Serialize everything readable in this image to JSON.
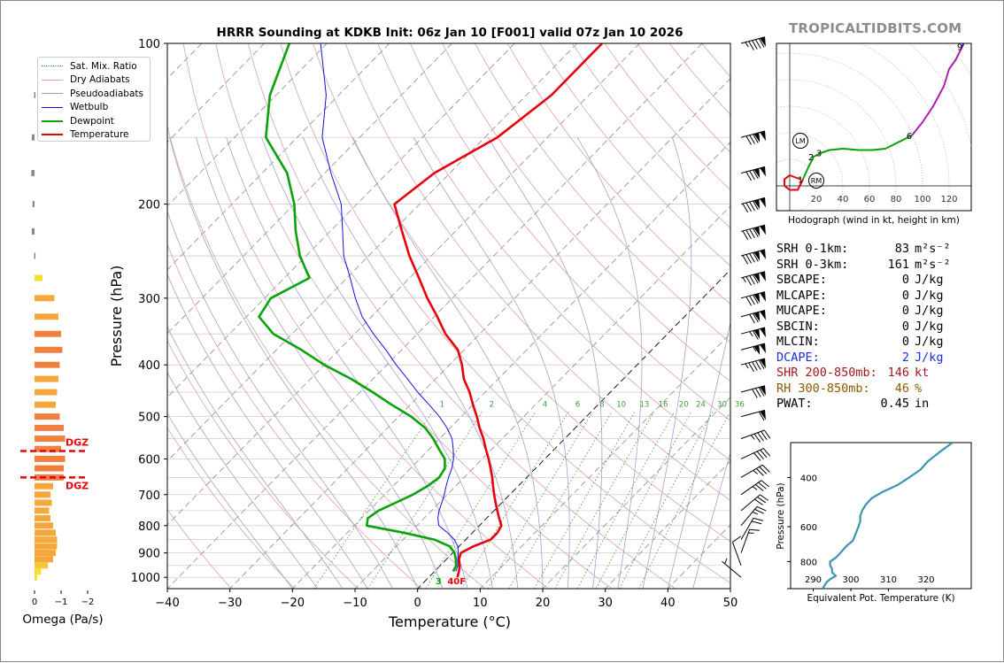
{
  "watermark": "TROPICALTIDBITS.COM",
  "title": "HRRR Sounding at KDKB Init: 06z Jan 10 [F001] valid 07z Jan 10 2026",
  "colors": {
    "temperature": "#e8000b",
    "dewpoint": "#08a308",
    "wetbulb": "#1010e0",
    "hodo_0_1": "#e8000b",
    "hodo_1_3": "#08a308",
    "hodo_3_6": "#08a308",
    "hodo_6_9": "#b020b0",
    "hodo_9": "#1010e0",
    "theta_e": "#3a95b0",
    "omega_pos": "#f28c3c",
    "omega_neg": "#888888",
    "dgz": "#e8000b"
  },
  "legend": [
    {
      "label": "Sat. Mix. Ratio",
      "style": "mix"
    },
    {
      "label": "Dry Adiabats",
      "style": "dry"
    },
    {
      "label": "Pseudoadiabats",
      "style": "moist"
    },
    {
      "label": "Wetbulb",
      "style": "wetbulb"
    },
    {
      "label": "Dewpoint",
      "style": "dewpoint"
    },
    {
      "label": "Temperature",
      "style": "temperature"
    }
  ],
  "chart_data": [
    {
      "type": "line",
      "name": "skewt",
      "xlabel": "Temperature (°C)",
      "ylabel": "Pressure (hPa)",
      "xlim": [
        -40,
        50
      ],
      "ylim": [
        1050,
        100
      ],
      "log_y": true,
      "skew": true,
      "x_ticks": [
        -40,
        -30,
        -20,
        -10,
        0,
        10,
        20,
        30,
        40,
        50
      ],
      "y_ticks": [
        100,
        200,
        300,
        400,
        500,
        600,
        700,
        800,
        900,
        1000
      ],
      "mixing_ratio_labels": [
        "1",
        "2",
        "4",
        "6",
        "8",
        "10",
        "13",
        "16",
        "20",
        "24",
        "30",
        "36"
      ],
      "surface_label": "40F",
      "surface_dewpoint_label": "3",
      "series": [
        {
          "name": "Temperature",
          "p": [
            1000,
            975,
            950,
            925,
            900,
            875,
            850,
            825,
            800,
            775,
            750,
            725,
            700,
            675,
            650,
            625,
            600,
            575,
            550,
            525,
            500,
            475,
            450,
            425,
            400,
            375,
            350,
            325,
            300,
            275,
            250,
            225,
            200,
            175,
            150,
            125,
            100
          ],
          "t": [
            4.6,
            3.9,
            3.1,
            2.0,
            1.3,
            2.3,
            4.0,
            4.0,
            3.5,
            2.0,
            0.5,
            -1.0,
            -2.5,
            -4.0,
            -5.5,
            -7.2,
            -9.0,
            -11.0,
            -13.0,
            -15.3,
            -17.5,
            -20.0,
            -22.5,
            -25.5,
            -28.0,
            -31.0,
            -35.5,
            -39.5,
            -44.0,
            -48.5,
            -53.5,
            -58.5,
            -64.0,
            -62.5,
            -58.0,
            -56.0,
            -56.0
          ]
        },
        {
          "name": "Dewpoint",
          "p": [
            975,
            950,
            925,
            900,
            875,
            850,
            825,
            800,
            775,
            750,
            725,
            700,
            675,
            650,
            625,
            600,
            575,
            550,
            525,
            500,
            475,
            450,
            425,
            400,
            375,
            350,
            325,
            300,
            275,
            250,
            225,
            200,
            175,
            150,
            125,
            100
          ],
          "t": [
            3.0,
            2.5,
            1.5,
            0.3,
            -1.5,
            -5.0,
            -11.0,
            -18.0,
            -19.0,
            -18.5,
            -17.0,
            -15.5,
            -14.5,
            -14.0,
            -14.5,
            -16.0,
            -18.5,
            -21.0,
            -24.0,
            -28.0,
            -33.0,
            -38.0,
            -43.5,
            -50.0,
            -56.0,
            -63.0,
            -68.0,
            -69.0,
            -66.0,
            -71.0,
            -75.5,
            -80.0,
            -86.0,
            -95.0,
            -101.0,
            -106.0
          ]
        },
        {
          "name": "Wetbulb",
          "p": [
            975,
            950,
            925,
            900,
            875,
            850,
            825,
            800,
            775,
            750,
            725,
            700,
            675,
            650,
            625,
            600,
            575,
            550,
            525,
            500,
            475,
            450,
            425,
            400,
            375,
            350,
            325,
            300,
            275,
            250,
            225,
            200,
            175,
            150,
            125,
            100
          ],
          "t": [
            3.4,
            2.8,
            1.8,
            0.9,
            -0.2,
            -1.8,
            -4.0,
            -6.5,
            -7.8,
            -8.8,
            -9.6,
            -10.5,
            -11.5,
            -12.5,
            -13.4,
            -14.6,
            -16.2,
            -18.0,
            -20.5,
            -23.5,
            -27.0,
            -30.8,
            -34.5,
            -38.5,
            -42.5,
            -47.0,
            -51.5,
            -55.5,
            -59.5,
            -64.0,
            -68.0,
            -72.5,
            -79.0,
            -86.0,
            -92.0,
            -101.0
          ]
        }
      ],
      "wind_barbs": [
        {
          "p": 100,
          "spd": 95,
          "dir": 255
        },
        {
          "p": 150,
          "spd": 130,
          "dir": 255
        },
        {
          "p": 175,
          "spd": 130,
          "dir": 255
        },
        {
          "p": 200,
          "spd": 140,
          "dir": 255
        },
        {
          "p": 225,
          "spd": 140,
          "dir": 255
        },
        {
          "p": 250,
          "spd": 140,
          "dir": 255
        },
        {
          "p": 275,
          "spd": 135,
          "dir": 255
        },
        {
          "p": 300,
          "spd": 130,
          "dir": 255
        },
        {
          "p": 325,
          "spd": 120,
          "dir": 255
        },
        {
          "p": 350,
          "spd": 115,
          "dir": 255
        },
        {
          "p": 375,
          "spd": 105,
          "dir": 255
        },
        {
          "p": 400,
          "spd": 95,
          "dir": 255
        },
        {
          "p": 450,
          "spd": 80,
          "dir": 255
        },
        {
          "p": 500,
          "spd": 60,
          "dir": 255
        },
        {
          "p": 550,
          "spd": 45,
          "dir": 250
        },
        {
          "p": 600,
          "spd": 40,
          "dir": 245
        },
        {
          "p": 650,
          "spd": 35,
          "dir": 240
        },
        {
          "p": 700,
          "spd": 35,
          "dir": 235
        },
        {
          "p": 750,
          "spd": 30,
          "dir": 230
        },
        {
          "p": 800,
          "spd": 25,
          "dir": 220
        },
        {
          "p": 850,
          "spd": 20,
          "dir": 210
        },
        {
          "p": 900,
          "spd": 15,
          "dir": 200
        },
        {
          "p": 950,
          "spd": 10,
          "dir": 160
        },
        {
          "p": 1000,
          "spd": 5,
          "dir": 130
        }
      ]
    },
    {
      "type": "bar",
      "name": "omega",
      "xlabel": "Omega (Pa/s)",
      "x_ticks": [
        "0",
        "−1",
        "−2"
      ],
      "xlim": [
        0,
        -2.5
      ],
      "dgz_label": "DGZ",
      "dgz_levels": [
        580,
        650
      ],
      "p": [
        125,
        150,
        175,
        200,
        225,
        250,
        275,
        300,
        325,
        350,
        375,
        400,
        425,
        450,
        475,
        500,
        525,
        550,
        575,
        600,
        625,
        650,
        675,
        700,
        725,
        750,
        775,
        800,
        825,
        850,
        875,
        900,
        925,
        950,
        975,
        1000
      ],
      "values": [
        0.05,
        0.35,
        0.4,
        0.25,
        0.35,
        0.05,
        -0.3,
        -0.75,
        -0.9,
        -1.0,
        -1.05,
        -0.95,
        -0.9,
        -0.85,
        -0.8,
        -0.95,
        -1.1,
        -1.15,
        -1.0,
        -1.15,
        -1.1,
        -1.1,
        -0.7,
        -0.6,
        -0.65,
        -0.55,
        -0.6,
        -0.7,
        -0.8,
        -0.85,
        -0.85,
        -0.8,
        -0.7,
        -0.5,
        -0.25,
        -0.1
      ]
    },
    {
      "type": "line",
      "name": "hodograph",
      "caption": "Hodograph (wind in kt, height in km)",
      "ring_labels": [
        "20",
        "40",
        "60",
        "80",
        "100",
        "120"
      ],
      "markers": [
        "LM",
        "RM"
      ],
      "height_labels": [
        "1",
        "2",
        "3",
        "6",
        "9"
      ],
      "segments": [
        {
          "color_key": "hodo_0_1",
          "u": [
            8,
            0,
            -4,
            -4,
            0,
            6,
            10
          ],
          "v": [
            5,
            8,
            5,
            0,
            -3,
            -3,
            5
          ]
        },
        {
          "color_key": "hodo_1_3",
          "u": [
            10,
            14,
            18,
            24
          ],
          "v": [
            5,
            14,
            22,
            25
          ]
        },
        {
          "color_key": "hodo_3_6",
          "u": [
            24,
            30,
            40,
            52,
            62,
            72,
            82,
            92
          ],
          "v": [
            25,
            27,
            28,
            27,
            27,
            28,
            33,
            38
          ]
        },
        {
          "color_key": "hodo_6_9",
          "u": [
            92,
            100,
            108,
            116,
            120,
            125,
            130
          ],
          "v": [
            38,
            48,
            60,
            75,
            88,
            95,
            105
          ]
        },
        {
          "color_key": "hodo_9",
          "u": [
            130,
            131,
            132,
            132,
            133
          ],
          "v": [
            105,
            108,
            112,
            116,
            120
          ]
        }
      ],
      "lm": {
        "u": 8,
        "v": 34
      },
      "rm": {
        "u": 20,
        "v": 4
      }
    },
    {
      "type": "line",
      "name": "theta_e",
      "xlabel": "Equivalent Pot. Temperature (K)",
      "ylabel": "Pressure (hPa)",
      "xlim": [
        284,
        332
      ],
      "ylim": [
        1000,
        300
      ],
      "x_ticks": [
        290,
        300,
        310,
        320
      ],
      "y_ticks": [
        400,
        600,
        800
      ],
      "p": [
        1000,
        975,
        950,
        925,
        900,
        875,
        850,
        825,
        800,
        775,
        750,
        725,
        700,
        675,
        650,
        625,
        600,
        575,
        550,
        525,
        500,
        475,
        450,
        425,
        400,
        375,
        350,
        325,
        300
      ],
      "values": [
        292.5,
        293,
        293.5,
        294.5,
        296,
        295,
        295,
        294.5,
        294.5,
        296,
        297,
        298,
        299,
        300.5,
        301,
        301.5,
        302,
        302.5,
        302.5,
        303,
        304,
        305.5,
        308.5,
        312.5,
        315.5,
        318.5,
        320.5,
        323.5,
        327
      ]
    }
  ],
  "hodo_caption": "Hodograph (wind in kt, height in km)",
  "stats": [
    {
      "label": "SRH 0-1km:",
      "value": "83",
      "unit": "m²s⁻²",
      "color": "#000000"
    },
    {
      "label": "SRH 0-3km:",
      "value": "161",
      "unit": "m²s⁻²",
      "color": "#000000"
    },
    {
      "label": "SBCAPE:",
      "value": "0",
      "unit": "J/kg",
      "color": "#000000"
    },
    {
      "label": "MLCAPE:",
      "value": "0",
      "unit": "J/kg",
      "color": "#000000"
    },
    {
      "label": "MUCAPE:",
      "value": "0",
      "unit": "J/kg",
      "color": "#000000"
    },
    {
      "label": "SBCIN:",
      "value": "0",
      "unit": "J/kg",
      "color": "#000000"
    },
    {
      "label": "MLCIN:",
      "value": "0",
      "unit": "J/kg",
      "color": "#000000"
    },
    {
      "label": "DCAPE:",
      "value": "2",
      "unit": "J/kg",
      "color": "#1c2ed6"
    },
    {
      "label": "SHR 200-850mb:",
      "value": "146",
      "unit": "kt",
      "color": "#a3161a"
    },
    {
      "label": "RH 300-850mb:",
      "value": "46",
      "unit": "%",
      "color": "#8a5a00"
    },
    {
      "label": "PWAT:",
      "value": "0.45",
      "unit": "in",
      "color": "#000000"
    }
  ]
}
